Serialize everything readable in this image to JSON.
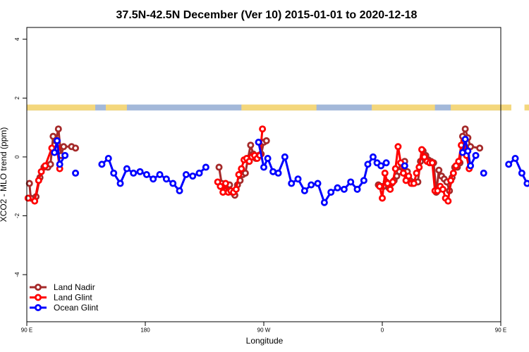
{
  "chart_data": {
    "type": "line",
    "title": "37.5N-42.5N December (Ver 10)   2015-01-01 to 2020-12-18",
    "xlabel": "Longitude",
    "ylabel": "XCO2 - MLO trend (ppm)",
    "xlim": [
      90,
      450
    ],
    "ylim": [
      -5.6,
      4.4
    ],
    "x_ticks": [
      {
        "value": 90,
        "label": "90 E"
      },
      {
        "value": 180,
        "label": "180"
      },
      {
        "value": 270,
        "label": "90 W"
      },
      {
        "value": 360,
        "label": "0"
      },
      {
        "value": 450,
        "label": "90 E"
      },
      {
        "value": 540,
        "label": "180"
      }
    ],
    "y_ticks": [
      {
        "value": -4,
        "label": "-4"
      },
      {
        "value": -2,
        "label": "-2"
      },
      {
        "value": 0,
        "label": "0"
      },
      {
        "value": 2,
        "label": "2"
      },
      {
        "value": 4,
        "label": "4"
      }
    ],
    "grid": false,
    "legend_position": "bottom-left",
    "land_ocean_strip": {
      "y_range": [
        1.58,
        1.78
      ],
      "ocean_color": "#a3b8d9",
      "land_color": "#f4d77c",
      "land_segments": [
        [
          90,
          142
        ],
        [
          150,
          166
        ],
        [
          253,
          310
        ],
        [
          352,
          400
        ],
        [
          412,
          458
        ],
        [
          468,
          525
        ]
      ]
    },
    "series": [
      {
        "name": "Land Nadir",
        "color": "#a52a2a",
        "points": [
          [
            92,
            -0.9
          ],
          [
            93,
            -1.4
          ],
          [
            97,
            -1.35
          ],
          [
            100,
            -0.7
          ],
          [
            103,
            -0.35
          ],
          [
            106,
            -0.35
          ],
          [
            108,
            -0.25
          ],
          [
            110,
            0.7
          ],
          [
            112,
            0.55
          ],
          [
            114,
            0.95
          ],
          [
            116,
            0.05
          ],
          [
            118,
            0.35
          ],
          [
            124,
            0.35
          ],
          [
            127,
            0.3
          ],
          null,
          [
            236,
            -0.35
          ],
          [
            238,
            -0.9
          ],
          [
            240,
            -1.1
          ],
          [
            242,
            -1.0
          ],
          [
            244,
            -0.95
          ],
          [
            246,
            -1.2
          ],
          [
            248,
            -1.3
          ],
          [
            250,
            -0.95
          ],
          [
            252,
            -0.8
          ],
          [
            254,
            -0.6
          ],
          [
            256,
            -0.55
          ],
          [
            258,
            -0.05
          ],
          [
            260,
            0.4
          ],
          [
            262,
            0.1
          ],
          [
            264,
            -0.05
          ],
          [
            266,
            0.05
          ],
          [
            268,
            0.1
          ],
          [
            270,
            0.5
          ],
          [
            272,
            0.55
          ],
          null,
          [
            357,
            -0.95
          ],
          [
            359,
            -1.0
          ],
          [
            361,
            -1.0
          ],
          [
            363,
            -0.85
          ],
          [
            365,
            -1.05
          ],
          [
            367,
            -0.9
          ],
          [
            369,
            -0.8
          ],
          [
            371,
            -0.65
          ],
          [
            373,
            -0.5
          ],
          [
            375,
            -0.35
          ],
          [
            377,
            -0.15
          ],
          [
            379,
            -0.5
          ],
          [
            381,
            -0.8
          ],
          [
            383,
            -0.9
          ],
          [
            385,
            -0.85
          ],
          [
            387,
            -0.85
          ],
          [
            389,
            -0.15
          ],
          [
            391,
            0.2
          ],
          [
            393,
            0.05
          ],
          [
            395,
            -0.1
          ],
          [
            397,
            -0.15
          ],
          [
            399,
            -0.2
          ],
          [
            401,
            -1.2
          ],
          [
            403,
            -0.45
          ],
          [
            405,
            -0.65
          ],
          [
            407,
            -0.75
          ],
          [
            409,
            -0.85
          ],
          [
            411,
            -1.15
          ],
          [
            413,
            -0.7
          ],
          [
            415,
            -0.35
          ],
          [
            417,
            -0.35
          ],
          [
            419,
            -0.2
          ],
          [
            421,
            0.7
          ],
          [
            423,
            0.95
          ],
          [
            425,
            0.65
          ],
          [
            427,
            0.35
          ],
          [
            434,
            0.3
          ]
        ]
      },
      {
        "name": "Land Glint",
        "color": "#ff0000",
        "points": [
          [
            91,
            -1.4
          ],
          [
            96,
            -1.5
          ],
          [
            99,
            -0.8
          ],
          [
            101,
            -0.5
          ],
          [
            104,
            -0.3
          ],
          [
            109,
            0.3
          ],
          [
            113,
            0.3
          ],
          [
            115,
            -0.4
          ],
          null,
          [
            235,
            -0.85
          ],
          [
            237,
            -1.0
          ],
          [
            239,
            -1.2
          ],
          [
            241,
            -0.9
          ],
          [
            243,
            -1.2
          ],
          [
            245,
            -1.15
          ],
          [
            247,
            -1.2
          ],
          [
            249,
            -1.1
          ],
          [
            251,
            -0.6
          ],
          [
            253,
            -0.4
          ],
          [
            255,
            -0.1
          ],
          [
            257,
            -0.05
          ],
          [
            259,
            -0.15
          ],
          [
            261,
            0.0
          ],
          [
            263,
            0.05
          ],
          [
            265,
            -0.05
          ],
          [
            267,
            0.05
          ],
          [
            269,
            0.95
          ],
          null,
          [
            358,
            -1.0
          ],
          [
            360,
            -1.4
          ],
          [
            362,
            -0.55
          ],
          [
            364,
            -0.9
          ],
          [
            366,
            -1.1
          ],
          [
            368,
            -0.85
          ],
          [
            370,
            -0.4
          ],
          [
            372,
            0.35
          ],
          [
            374,
            -0.2
          ],
          [
            376,
            -0.55
          ],
          [
            378,
            -0.8
          ],
          [
            380,
            -0.65
          ],
          [
            382,
            -0.9
          ],
          [
            384,
            -0.9
          ],
          [
            386,
            -0.55
          ],
          [
            388,
            -0.35
          ],
          [
            390,
            0.25
          ],
          [
            392,
            0.0
          ],
          [
            394,
            -0.15
          ],
          [
            396,
            -0.2
          ],
          [
            398,
            -0.2
          ],
          [
            400,
            -1.15
          ],
          [
            402,
            -1.15
          ],
          [
            404,
            -1.0
          ],
          [
            406,
            -1.1
          ],
          [
            408,
            -1.4
          ],
          [
            410,
            -1.5
          ],
          [
            412,
            -0.8
          ],
          [
            414,
            -0.55
          ],
          [
            416,
            -0.3
          ],
          [
            418,
            -0.15
          ],
          [
            420,
            0.4
          ],
          [
            422,
            0.55
          ],
          [
            424,
            0.05
          ],
          [
            426,
            -0.4
          ]
        ]
      },
      {
        "name": "Ocean Glint",
        "color": "#0000ff",
        "points": [
          [
            111,
            0.15
          ],
          [
            113,
            0.55
          ],
          [
            115,
            -0.25
          ],
          [
            119,
            0.05
          ],
          null,
          [
            127,
            -0.55
          ],
          null,
          [
            147,
            -0.25
          ],
          [
            152,
            -0.05
          ],
          [
            156,
            -0.55
          ],
          [
            161,
            -0.9
          ],
          [
            166,
            -0.4
          ],
          [
            171,
            -0.55
          ],
          [
            176,
            -0.5
          ],
          [
            181,
            -0.6
          ],
          [
            186,
            -0.75
          ],
          [
            191,
            -0.6
          ],
          [
            196,
            -0.75
          ],
          [
            201,
            -0.9
          ],
          [
            206,
            -1.15
          ],
          [
            211,
            -0.6
          ],
          [
            216,
            -0.65
          ],
          [
            221,
            -0.55
          ],
          [
            226,
            -0.35
          ],
          null,
          [
            266,
            0.5
          ],
          [
            270,
            -0.35
          ],
          [
            273,
            -0.05
          ],
          [
            277,
            -0.5
          ],
          [
            281,
            -0.55
          ],
          [
            286,
            0.0
          ],
          [
            291,
            -0.9
          ],
          [
            296,
            -0.75
          ],
          [
            301,
            -1.15
          ],
          [
            306,
            -0.95
          ],
          [
            311,
            -0.9
          ],
          [
            316,
            -1.55
          ],
          [
            321,
            -1.2
          ],
          [
            326,
            -1.05
          ],
          [
            331,
            -1.1
          ],
          [
            336,
            -0.85
          ],
          [
            341,
            -1.1
          ],
          [
            346,
            -0.8
          ],
          [
            349,
            -0.25
          ],
          [
            353,
            0.0
          ],
          [
            356,
            -0.2
          ],
          [
            359,
            -0.3
          ],
          [
            363,
            -0.2
          ],
          null,
          [
            377,
            -0.3
          ],
          null,
          [
            421,
            0.15
          ],
          [
            423,
            0.6
          ],
          [
            425,
            0.2
          ],
          [
            427,
            -0.3
          ],
          [
            431,
            0.05
          ],
          null,
          [
            437,
            -0.55
          ],
          null,
          [
            456,
            -0.25
          ],
          [
            461,
            -0.05
          ],
          [
            466,
            -0.55
          ],
          [
            470,
            -0.9
          ]
        ]
      }
    ]
  }
}
